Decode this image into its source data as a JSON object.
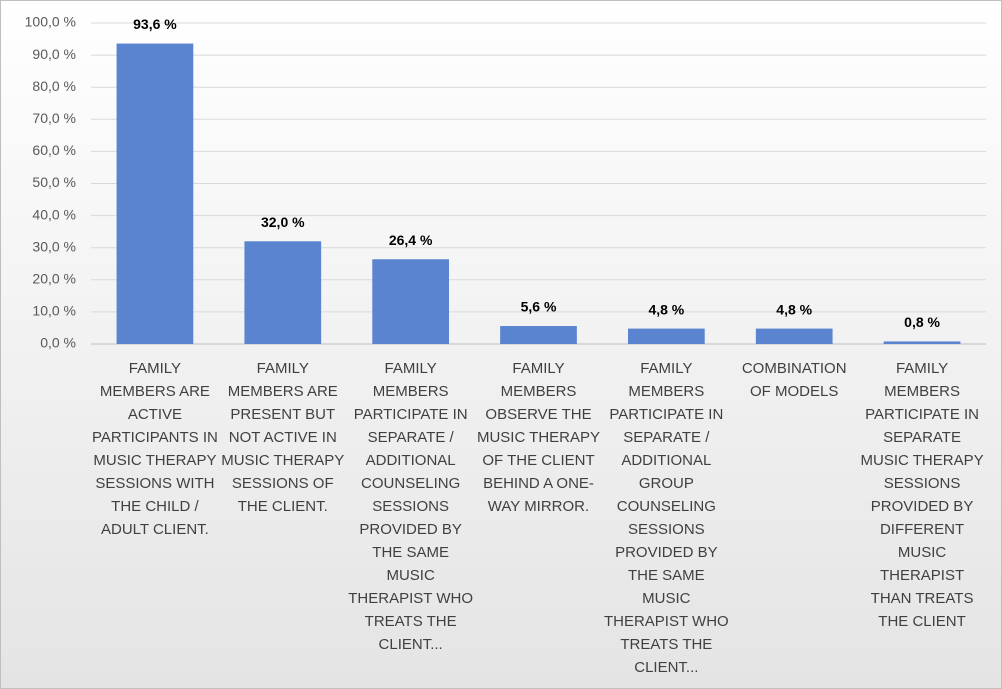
{
  "chart_data": {
    "type": "bar",
    "categories": [
      "FAMILY MEMBERS ARE ACTIVE PARTICIPANTS IN MUSIC THERAPY SESSIONS WITH THE CHILD / ADULT CLIENT.",
      "FAMILY MEMBERS ARE PRESENT BUT NOT ACTIVE IN MUSIC THERAPY SESSIONS OF THE CLIENT.",
      "FAMILY MEMBERS PARTICIPATE IN SEPARATE / ADDITIONAL COUNSELING SESSIONS PROVIDED BY THE SAME MUSIC THERAPIST WHO TREATS THE CLIENT...",
      "FAMILY MEMBERS OBSERVE THE MUSIC THERAPY OF THE CLIENT BEHIND A ONE-WAY MIRROR.",
      "FAMILY MEMBERS PARTICIPATE IN SEPARATE / ADDITIONAL GROUP COUNSELING SESSIONS PROVIDED BY THE SAME MUSIC THERAPIST WHO TREATS THE CLIENT...",
      "COMBINATION OF MODELS",
      "FAMILY MEMBERS PARTICIPATE IN SEPARATE MUSIC THERAPY SESSIONS PROVIDED BY DIFFERENT MUSIC THERAPIST THAN TREATS THE CLIENT"
    ],
    "values": [
      93.6,
      32.0,
      26.4,
      5.6,
      4.8,
      4.8,
      0.8
    ],
    "value_labels": [
      "93,6 %",
      "32,0 %",
      "26,4 %",
      "5,6 %",
      "4,8 %",
      "4,8 %",
      "0,8 %"
    ],
    "color": "#5b84d0",
    "ylim": [
      0,
      100
    ],
    "yticks": [
      {
        "value": 0,
        "label": "0,0 %"
      },
      {
        "value": 10,
        "label": "10,0 %"
      },
      {
        "value": 20,
        "label": "20,0 %"
      },
      {
        "value": 30,
        "label": "30,0 %"
      },
      {
        "value": 40,
        "label": "40,0 %"
      },
      {
        "value": 50,
        "label": "50,0 %"
      },
      {
        "value": 60,
        "label": "60,0 %"
      },
      {
        "value": 70,
        "label": "70,0 %"
      },
      {
        "value": 80,
        "label": "80,0 %"
      },
      {
        "value": 90,
        "label": "90,0 %"
      },
      {
        "value": 100,
        "label": "100,0 %"
      }
    ],
    "grid": true
  }
}
